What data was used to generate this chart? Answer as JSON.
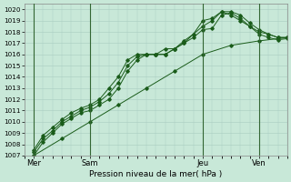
{
  "bg_color": "#c8e8d8",
  "grid_color": "#a8ccc0",
  "line_color_dark": "#1a5c1a",
  "line_color_light": "#2d7a2d",
  "xlabel": "Pression niveau de la mer( hPa )",
  "ylim": [
    1007,
    1020.5
  ],
  "yticks": [
    1007,
    1008,
    1009,
    1010,
    1011,
    1012,
    1013,
    1014,
    1015,
    1016,
    1017,
    1018,
    1019,
    1020
  ],
  "xtick_labels": [
    "Mer",
    "Sam",
    "Jeu",
    "Ven"
  ],
  "xtick_positions": [
    0,
    24,
    72,
    96
  ],
  "xlim": [
    -4,
    108
  ],
  "series": [
    {
      "x": [
        0,
        4,
        8,
        12,
        16,
        20,
        24,
        28,
        32,
        36,
        40,
        44,
        48,
        52,
        56,
        60,
        64,
        68,
        72,
        76,
        80,
        84,
        88,
        92,
        96,
        100,
        104,
        108
      ],
      "y": [
        1007.0,
        1008.2,
        1009.0,
        1009.8,
        1010.3,
        1010.8,
        1011.0,
        1011.5,
        1012.0,
        1013.0,
        1014.5,
        1015.5,
        1016.0,
        1016.0,
        1016.0,
        1016.5,
        1017.0,
        1017.5,
        1018.2,
        1018.3,
        1019.5,
        1019.7,
        1019.2,
        1018.5,
        1018.0,
        1017.8,
        1017.5,
        1017.5
      ]
    },
    {
      "x": [
        0,
        4,
        8,
        12,
        16,
        20,
        24,
        28,
        32,
        36,
        40,
        44,
        48,
        52,
        56,
        60,
        64,
        68,
        72,
        76,
        80,
        84,
        88,
        92,
        96,
        100,
        104,
        108
      ],
      "y": [
        1007.3,
        1008.5,
        1009.2,
        1010.0,
        1010.5,
        1011.0,
        1011.3,
        1011.8,
        1012.5,
        1013.5,
        1015.0,
        1015.8,
        1016.0,
        1016.0,
        1016.5,
        1016.5,
        1017.2,
        1017.8,
        1018.5,
        1019.0,
        1019.8,
        1019.8,
        1019.5,
        1018.8,
        1018.2,
        1017.8,
        1017.5,
        1017.5
      ]
    },
    {
      "x": [
        0,
        4,
        8,
        12,
        16,
        20,
        24,
        28,
        32,
        36,
        40,
        44,
        48,
        52,
        56,
        60,
        64,
        68,
        72,
        76,
        80,
        84,
        88,
        92,
        96,
        100,
        104,
        108
      ],
      "y": [
        1007.5,
        1008.8,
        1009.5,
        1010.2,
        1010.8,
        1011.2,
        1011.5,
        1012.0,
        1013.0,
        1014.0,
        1015.5,
        1016.0,
        1016.0,
        1016.0,
        1016.0,
        1016.5,
        1017.0,
        1017.8,
        1019.0,
        1019.2,
        1019.8,
        1019.5,
        1019.0,
        1018.5,
        1017.8,
        1017.5,
        1017.3,
        1017.4
      ]
    },
    {
      "x": [
        0,
        12,
        24,
        36,
        48,
        60,
        72,
        84,
        96,
        108
      ],
      "y": [
        1007.0,
        1008.5,
        1010.0,
        1011.5,
        1013.0,
        1014.5,
        1016.0,
        1016.8,
        1017.2,
        1017.5
      ]
    }
  ],
  "vline_color": "#336633",
  "spine_color": "#888888",
  "xlabel_fontsize": 6.5,
  "ytick_fontsize": 5.2,
  "xtick_fontsize": 6.0
}
